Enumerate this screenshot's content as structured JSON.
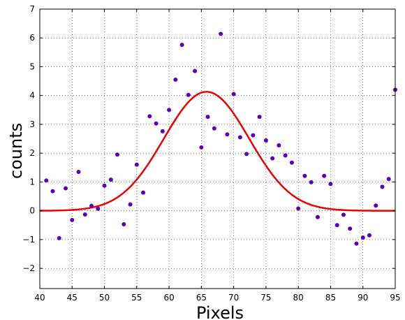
{
  "chart_data": {
    "type": "scatter",
    "title": "",
    "xlabel": "Pixels",
    "ylabel": "counts",
    "xlim": [
      40,
      95
    ],
    "ylim": [
      -2.7,
      7
    ],
    "grid": true,
    "legend": "none",
    "x_ticks": [
      40,
      45,
      50,
      55,
      60,
      65,
      70,
      75,
      80,
      85,
      90,
      95
    ],
    "y_ticks": [
      -2,
      -1,
      0,
      1,
      2,
      3,
      4,
      5,
      6,
      7
    ],
    "series": [
      {
        "kind": "points",
        "color": "#5a00b8",
        "x": [
          41,
          42,
          43,
          44,
          45,
          46,
          47,
          48,
          49,
          50,
          51,
          52,
          53,
          54,
          55,
          56,
          57,
          58,
          59,
          60,
          61,
          62,
          63,
          64,
          65,
          66,
          67,
          68,
          69,
          70,
          71,
          72,
          73,
          74,
          75,
          76,
          77,
          78,
          79,
          80,
          81,
          82,
          83,
          84,
          85,
          86,
          87,
          88,
          89,
          90,
          91,
          92,
          93,
          94,
          95
        ],
        "y": [
          1.05,
          0.68,
          -0.95,
          0.78,
          -0.32,
          1.35,
          -0.13,
          0.17,
          0.07,
          0.87,
          1.08,
          1.95,
          -0.47,
          0.22,
          1.6,
          0.63,
          3.28,
          3.03,
          2.76,
          3.5,
          4.55,
          5.76,
          4.02,
          4.85,
          2.2,
          3.26,
          2.86,
          6.14,
          2.65,
          4.05,
          2.55,
          1.97,
          2.62,
          3.26,
          2.44,
          1.82,
          2.27,
          1.92,
          1.67,
          0.08,
          1.21,
          0.99,
          -0.22,
          1.21,
          0.93,
          -0.5,
          -0.14,
          -0.62,
          -1.14,
          -0.93,
          -0.85,
          0.18,
          0.83,
          1.1,
          4.2
        ]
      },
      {
        "kind": "gaussian-fit",
        "color": "#ee0000",
        "amplitude": 4.13,
        "center": 65.8,
        "sigma": 6.6,
        "x_range": [
          40,
          95
        ]
      }
    ]
  }
}
